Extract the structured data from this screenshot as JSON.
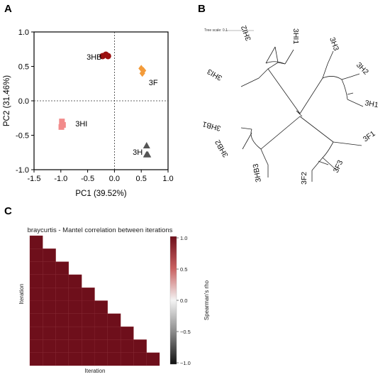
{
  "panels": {
    "a_label": "A",
    "b_label": "B",
    "c_label": "C"
  },
  "chart_data": [
    {
      "type": "scatter",
      "panel": "A",
      "title": "",
      "xlabel": "PC1 (39.52%)",
      "ylabel": "PC2 (31.46%)",
      "xlim": [
        -1.5,
        1.0
      ],
      "ylim": [
        -1.0,
        1.0
      ],
      "xticks": [
        -1.5,
        -1.0,
        -0.5,
        0.0,
        0.5,
        1.0
      ],
      "yticks": [
        -1.0,
        -0.5,
        0.0,
        0.5,
        1.0
      ],
      "xtick_labels": [
        "-1.5",
        "-1.0",
        "-0.5",
        "0.0",
        "0.5",
        "1.0"
      ],
      "ytick_labels": [
        "-1.0",
        "-0.5",
        "0.0",
        "0.5",
        "1.0"
      ],
      "grid": false,
      "zero_lines": "dotted",
      "series": [
        {
          "name": "3HB",
          "marker": "circle",
          "color": "#9b1111",
          "x": [
            -0.22,
            -0.16,
            -0.12
          ],
          "y": [
            0.65,
            0.67,
            0.65
          ]
        },
        {
          "name": "3F",
          "marker": "diamond",
          "color": "#f39b3a",
          "x": [
            0.5,
            0.54,
            0.52
          ],
          "y": [
            0.47,
            0.44,
            0.4
          ]
        },
        {
          "name": "3HI",
          "marker": "square",
          "color": "#f28b8b",
          "x": [
            -0.98,
            -0.96,
            -0.99
          ],
          "y": [
            -0.3,
            -0.35,
            -0.38
          ]
        },
        {
          "name": "3H",
          "marker": "triangle",
          "color": "#555555",
          "x": [
            0.6,
            0.6,
            0.62
          ],
          "y": [
            -0.65,
            -0.78,
            -0.78
          ]
        }
      ],
      "point_labels": [
        {
          "text": "3HB",
          "x": -0.52,
          "y": 0.64
        },
        {
          "text": "3F",
          "x": 0.64,
          "y": 0.27
        },
        {
          "text": "3HI",
          "x": -0.73,
          "y": -0.33
        },
        {
          "text": "3H",
          "x": 0.34,
          "y": -0.74
        }
      ]
    },
    {
      "type": "tree",
      "panel": "B",
      "scale_text": "Tree scale: 0.1",
      "leaves": [
        "3HI1",
        "3H3",
        "3H2",
        "3H1",
        "3F1",
        "3F3",
        "3F2",
        "3HB3",
        "3HB2",
        "3HB1",
        "3HI3",
        "3HI2"
      ]
    },
    {
      "type": "heatmap",
      "panel": "C",
      "title": "braycurtis - Mantel correlation between iterations",
      "xlabel": "Iteration",
      "ylabel": "Iteration",
      "n": 10,
      "values": "all 1.0 (lower triangle incl. diagonal)",
      "color": "#6e0f1b",
      "colorbar": {
        "label": "Spearman's rho",
        "range": [
          -1.0,
          1.0
        ],
        "ticks": [
          "1.0",
          "0.5",
          "0.0",
          "−0.5",
          "−1.0"
        ]
      }
    }
  ]
}
